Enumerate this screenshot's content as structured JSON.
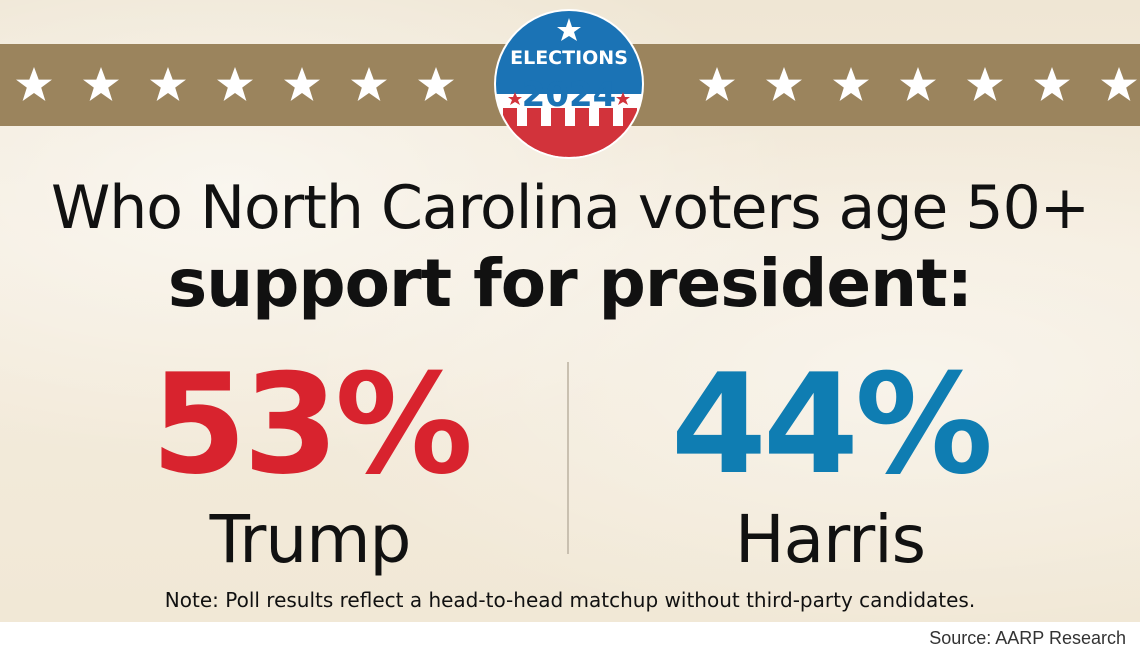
{
  "badge": {
    "top_text": "ELECTIONS",
    "year": "2024",
    "colors": {
      "blue": "#1b73b5",
      "red": "#d2333b",
      "white": "#ffffff"
    }
  },
  "header": {
    "title_line1": "Who North Carolina voters age 50+",
    "title_line2": "support for president:"
  },
  "results": [
    {
      "percent": "53%",
      "candidate": "Trump",
      "color": "#d8232e"
    },
    {
      "percent": "44%",
      "candidate": "Harris",
      "color": "#0f7db2"
    }
  ],
  "note": "Note: Poll results reflect a head-to-head matchup without third-party candidates.",
  "source": "Source: AARP Research",
  "colors": {
    "band": "#9b845d",
    "background": "#f1e8d6"
  }
}
